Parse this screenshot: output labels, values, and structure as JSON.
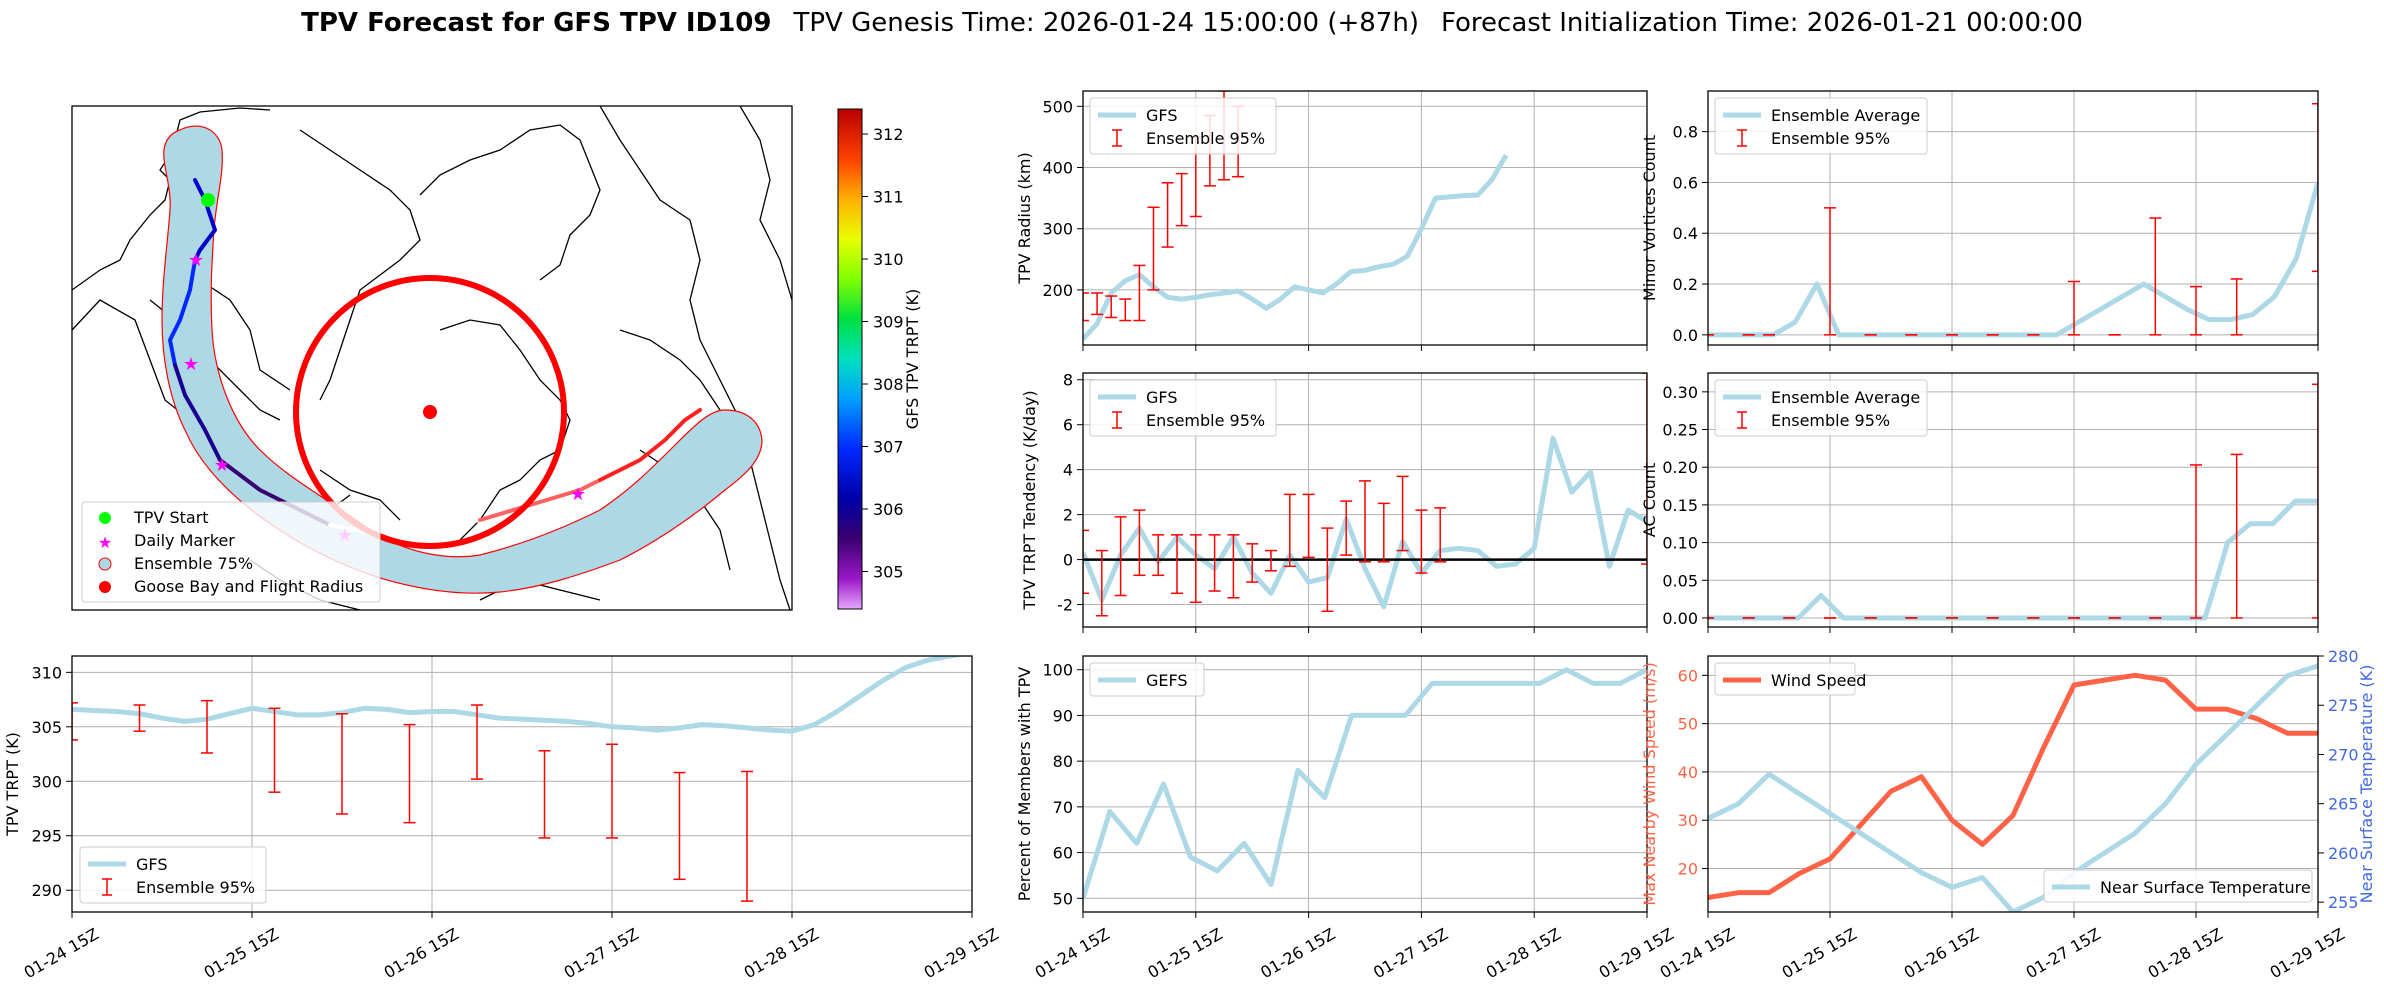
{
  "header": {
    "title_bold": "TPV Forecast for GFS TPV ID109",
    "genesis": "TPV Genesis Time: 2026-01-24 15:00:00 (+87h)",
    "init": "Forecast Initialization Time: 2026-01-21 00:00:00"
  },
  "colors": {
    "gfs_line": "#add8e6",
    "errorbar": "#ff0000",
    "wind": "#ff6347",
    "temp_axis": "#4169e1"
  },
  "chart_data": [
    {
      "id": "map",
      "type": "map",
      "colorbar_label": "GFS TPV TRPT (K)",
      "colorbar_ticks": [
        "305",
        "306",
        "307",
        "308",
        "309",
        "310",
        "311",
        "312"
      ],
      "colorbar_range": [
        304.4,
        312.4
      ],
      "legend": [
        "TPV Start",
        "Daily Marker",
        "Ensemble 75%",
        "Goose Bay and Flight Radius"
      ]
    },
    {
      "id": "trpt",
      "type": "line",
      "ylabel": "TPV TRPT (K)",
      "ylim": [
        288,
        311.5
      ],
      "yticks": [
        290,
        295,
        300,
        305,
        310
      ],
      "x": [
        0,
        3,
        6,
        9,
        12,
        15,
        18,
        21,
        24,
        27,
        30,
        33,
        36,
        39,
        42,
        45,
        48,
        51,
        54,
        57,
        60,
        63,
        66,
        69,
        72,
        75,
        78,
        81,
        84,
        87,
        90,
        93,
        96,
        99,
        102,
        105,
        108,
        111,
        114,
        117,
        120
      ],
      "series": [
        {
          "name": "GFS",
          "values": [
            306.6,
            306.5,
            306.4,
            306.2,
            305.8,
            305.5,
            305.7,
            306.2,
            306.7,
            306.4,
            306.1,
            306.1,
            306.3,
            306.7,
            306.6,
            306.3,
            306.4,
            306.4,
            306.1,
            305.8,
            305.7,
            305.6,
            305.5,
            305.3,
            305.0,
            304.9,
            304.7,
            304.9,
            305.2,
            305.1,
            304.9,
            304.7,
            304.6,
            305.2,
            306.4,
            307.8,
            309.2,
            310.4,
            311.1,
            311.5,
            311.8
          ]
        }
      ],
      "errorbars": [
        {
          "x": 0,
          "lo": 303.8,
          "hi": 307.2
        },
        {
          "x": 9,
          "lo": 304.6,
          "hi": 307.0
        },
        {
          "x": 18,
          "lo": 302.6,
          "hi": 307.4
        },
        {
          "x": 27,
          "lo": 299.0,
          "hi": 306.7
        },
        {
          "x": 36,
          "lo": 297.0,
          "hi": 306.2
        },
        {
          "x": 45,
          "lo": 296.2,
          "hi": 305.2
        },
        {
          "x": 54,
          "lo": 300.2,
          "hi": 307.0
        },
        {
          "x": 63,
          "lo": 294.8,
          "hi": 302.8
        },
        {
          "x": 72,
          "lo": 294.8,
          "hi": 303.4
        },
        {
          "x": 81,
          "lo": 291.0,
          "hi": 300.8
        },
        {
          "x": 90,
          "lo": 289.0,
          "hi": 300.9
        }
      ],
      "legend": [
        "GFS",
        "Ensemble 95%"
      ],
      "xticks": [
        0,
        24,
        48,
        72,
        96,
        120
      ],
      "xticklabels": [
        "01-24 15Z",
        "01-25 15Z",
        "01-26 15Z",
        "01-27 15Z",
        "01-28 15Z",
        "01-29 15Z"
      ]
    },
    {
      "id": "radius",
      "type": "line",
      "ylabel": "TPV Radius (km)",
      "ylim": [
        110,
        525
      ],
      "yticks": [
        200,
        300,
        400,
        500
      ],
      "x": [
        0,
        3,
        6,
        9,
        12,
        15,
        18,
        21,
        24,
        27,
        30,
        33,
        36,
        39,
        42,
        45,
        48,
        51,
        54,
        57,
        60,
        63,
        66,
        69,
        72,
        75,
        78,
        81,
        84,
        87,
        90
      ],
      "series": [
        {
          "name": "GFS",
          "values": [
            120,
            145,
            195,
            215,
            225,
            205,
            188,
            185,
            188,
            192,
            195,
            198,
            185,
            170,
            185,
            205,
            200,
            195,
            210,
            230,
            232,
            238,
            242,
            255,
            300,
            350,
            352,
            354,
            355,
            380,
            420
          ]
        }
      ],
      "errorbars": [
        {
          "x": 0,
          "lo": 150,
          "hi": 195
        },
        {
          "x": 3,
          "lo": 160,
          "hi": 195
        },
        {
          "x": 6,
          "lo": 155,
          "hi": 190
        },
        {
          "x": 9,
          "lo": 150,
          "hi": 185
        },
        {
          "x": 12,
          "lo": 150,
          "hi": 240
        },
        {
          "x": 15,
          "lo": 200,
          "hi": 335
        },
        {
          "x": 18,
          "lo": 270,
          "hi": 375
        },
        {
          "x": 21,
          "lo": 305,
          "hi": 390
        },
        {
          "x": 24,
          "lo": 320,
          "hi": 450
        },
        {
          "x": 27,
          "lo": 370,
          "hi": 485
        },
        {
          "x": 30,
          "lo": 380,
          "hi": 525
        },
        {
          "x": 33,
          "lo": 385,
          "hi": 500
        }
      ],
      "legend": [
        "GFS",
        "Ensemble 95%"
      ]
    },
    {
      "id": "tendency",
      "type": "line",
      "ylabel": "TPV TRPT Tendency (K/day)",
      "ylim": [
        -3,
        8.3
      ],
      "yticks": [
        -2,
        0,
        2,
        4,
        6,
        8
      ],
      "legend": [
        "GFS",
        "Ensemble 95%"
      ]
    },
    {
      "id": "percent",
      "type": "line",
      "ylabel": "Percent of Members with TPV",
      "ylim": [
        47,
        103
      ],
      "yticks": [
        50,
        60,
        70,
        80,
        90,
        100
      ],
      "legend": [
        "GEFS"
      ]
    },
    {
      "id": "minor",
      "type": "line",
      "ylabel": "Minor Vortices Count",
      "ylim": [
        -0.04,
        0.96
      ],
      "yticks": [
        0.0,
        0.2,
        0.4,
        0.6,
        0.8
      ],
      "legend": [
        "Ensemble Average",
        "Ensemble 95%"
      ]
    },
    {
      "id": "ac",
      "type": "line",
      "ylabel": "AC Count",
      "ylim": [
        -0.012,
        0.325
      ],
      "yticks": [
        0.0,
        0.05,
        0.1,
        0.15,
        0.2,
        0.25,
        0.3
      ],
      "legend": [
        "Ensemble Average",
        "Ensemble 95%"
      ]
    },
    {
      "id": "wind",
      "type": "line",
      "ylabel_left": "Max Nearby Wind Speed (m/s)",
      "ylabel_right": "Near Surface Temperature (K)",
      "ylim_left": [
        11,
        64
      ],
      "yticks_left": [
        20,
        30,
        40,
        50,
        60
      ],
      "ylim_right": [
        254,
        280
      ],
      "yticks_right": [
        255,
        260,
        265,
        270,
        275,
        280
      ],
      "legend": [
        "Wind Speed",
        "Near Surface Temperature"
      ]
    }
  ]
}
